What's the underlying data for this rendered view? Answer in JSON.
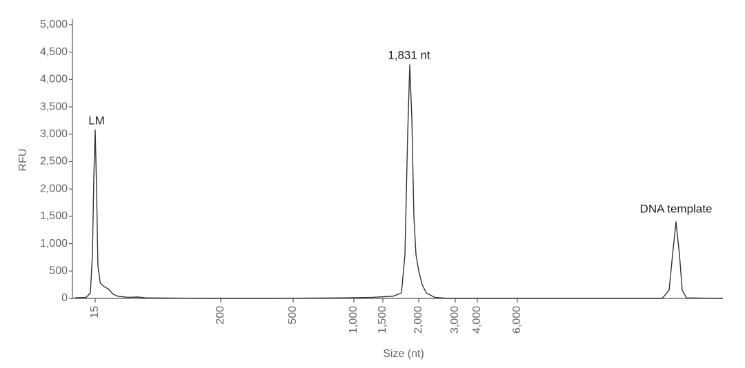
{
  "chart_data": {
    "type": "line",
    "ylabel": "RFU",
    "xlabel": "Size (nt)",
    "ylim": [
      0,
      5100
    ],
    "yticks": [
      0,
      500,
      {
        "value": 1000,
        "label": "1,000"
      },
      {
        "value": 1500,
        "label": "1,500"
      },
      {
        "value": 2000,
        "label": "2,000"
      },
      {
        "value": 2500,
        "label": "2,500"
      },
      {
        "value": 3000,
        "label": "3,000"
      },
      {
        "value": 3500,
        "label": "3,500"
      },
      {
        "value": 4000,
        "label": "4,000"
      },
      {
        "value": 4500,
        "label": "4,500"
      },
      {
        "value": 5000,
        "label": "5,000"
      }
    ],
    "xlim": [
      0,
      16000
    ],
    "xticks": [
      15,
      200,
      500,
      {
        "value": 1000,
        "label": "1,000"
      },
      {
        "value": 1500,
        "label": "1,500"
      },
      {
        "value": 2000,
        "label": "2,000"
      },
      {
        "value": 3000,
        "label": "3,000"
      },
      {
        "value": 4000,
        "label": "4,000"
      },
      {
        "value": 6000,
        "label": "6,000"
      }
    ],
    "color": "#333333",
    "x": [
      0,
      8.5,
      11.5,
      13,
      14,
      15,
      17,
      19,
      22.5,
      27.6,
      34.7,
      41,
      48,
      63,
      78,
      89,
      180,
      429,
      926,
      1321,
      1644,
      1760,
      1808,
      1846,
      1875,
      1904,
      1933,
      1962,
      2000,
      2094,
      2208,
      2434,
      2811,
      4276,
      7678,
      13047,
      13383,
      13550,
      13718,
      13886,
      14020,
      14221,
      16000
    ],
    "values": [
      10,
      20,
      100,
      800,
      2200,
      3080,
      2000,
      600,
      280,
      220,
      170,
      80,
      40,
      20,
      25,
      10,
      0,
      0,
      10,
      20,
      40,
      100,
      800,
      3000,
      4270,
      3300,
      1500,
      800,
      500,
      250,
      100,
      20,
      0,
      0,
      0,
      0,
      150,
      800,
      1400,
      800,
      150,
      10,
      0
    ],
    "annotations": [
      "LM",
      "1,831 nt",
      "DNA template"
    ]
  }
}
